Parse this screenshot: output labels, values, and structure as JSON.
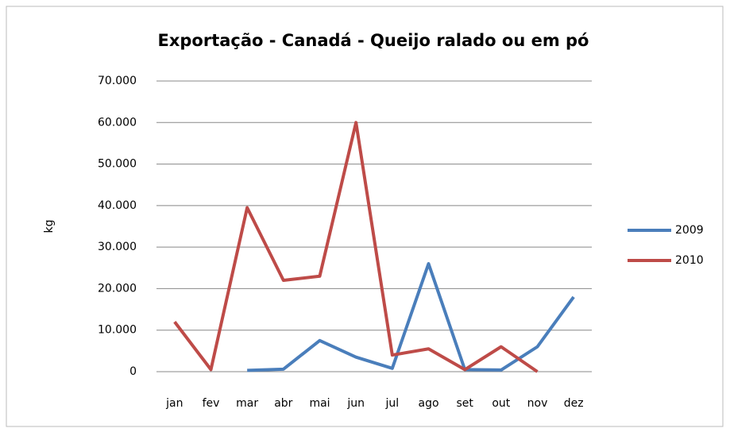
{
  "chart_data": {
    "type": "line",
    "title": "Exportação - Canadá - Queijo ralado ou em pó",
    "y_label": "kg",
    "categories": [
      "jan",
      "fev",
      "mar",
      "abr",
      "mai",
      "jun",
      "jul",
      "ago",
      "set",
      "out",
      "nov",
      "dez"
    ],
    "series": [
      {
        "name": "2009",
        "color": "#4a7ebb",
        "values": [
          null,
          null,
          300,
          600,
          7500,
          3500,
          800,
          26000,
          500,
          400,
          6000,
          18000
        ]
      },
      {
        "name": "2010",
        "color": "#be4b48",
        "values": [
          12000,
          500,
          39500,
          22000,
          23000,
          60000,
          4000,
          5500,
          500,
          6000,
          0,
          null
        ]
      }
    ],
    "ylim": [
      0,
      70000
    ],
    "yticks": [
      0,
      {
        "value": 10000,
        "label": "10.000"
      },
      {
        "value": 20000,
        "label": "20.000"
      },
      {
        "value": 30000,
        "label": "30.000"
      },
      {
        "value": 40000,
        "label": "40.000"
      },
      {
        "value": 50000,
        "label": "50.000"
      },
      {
        "value": 60000,
        "label": "60.000"
      },
      {
        "value": 70000,
        "label": "70.000"
      }
    ],
    "grid": true,
    "legend": "right"
  }
}
